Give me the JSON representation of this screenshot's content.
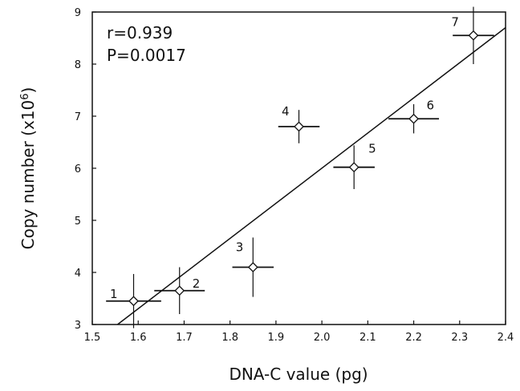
{
  "chart_data": {
    "type": "scatter",
    "title": "",
    "xlabel": "DNA-C value (pg)",
    "ylabel_main": "Copy number (x10",
    "ylabel_sup": "6",
    "ylabel_close": ")",
    "xlim": [
      1.5,
      2.4
    ],
    "ylim": [
      3,
      9
    ],
    "x_ticks": [
      "1.5",
      "1.6",
      "1.7",
      "1.8",
      "1.9",
      "2.0",
      "2.1",
      "2.2",
      "2.3",
      "2.4"
    ],
    "y_ticks": [
      "3",
      "4",
      "5",
      "6",
      "7",
      "8",
      "9"
    ],
    "grid": false,
    "annotations": {
      "r": "r=0.939",
      "p": "P=0.0017"
    },
    "points": [
      {
        "label": "1",
        "x": 1.59,
        "y": 3.45,
        "xerr": 0.06,
        "yerr": 0.52
      },
      {
        "label": "2",
        "x": 1.69,
        "y": 3.65,
        "xerr": 0.055,
        "yerr": 0.45
      },
      {
        "label": "3",
        "x": 1.85,
        "y": 4.1,
        "xerr": 0.045,
        "yerr": 0.57
      },
      {
        "label": "4",
        "x": 1.95,
        "y": 6.8,
        "xerr": 0.045,
        "yerr": 0.32
      },
      {
        "label": "5",
        "x": 2.07,
        "y": 6.02,
        "xerr": 0.045,
        "yerr": 0.42
      },
      {
        "label": "6",
        "x": 2.2,
        "y": 6.95,
        "xerr": 0.055,
        "yerr": 0.28
      },
      {
        "label": "7",
        "x": 2.33,
        "y": 8.55,
        "xerr": 0.045,
        "yerr": 0.55
      }
    ],
    "regression_line": {
      "x": [
        1.555,
        2.4
      ],
      "y": [
        3.0,
        8.7
      ]
    }
  }
}
